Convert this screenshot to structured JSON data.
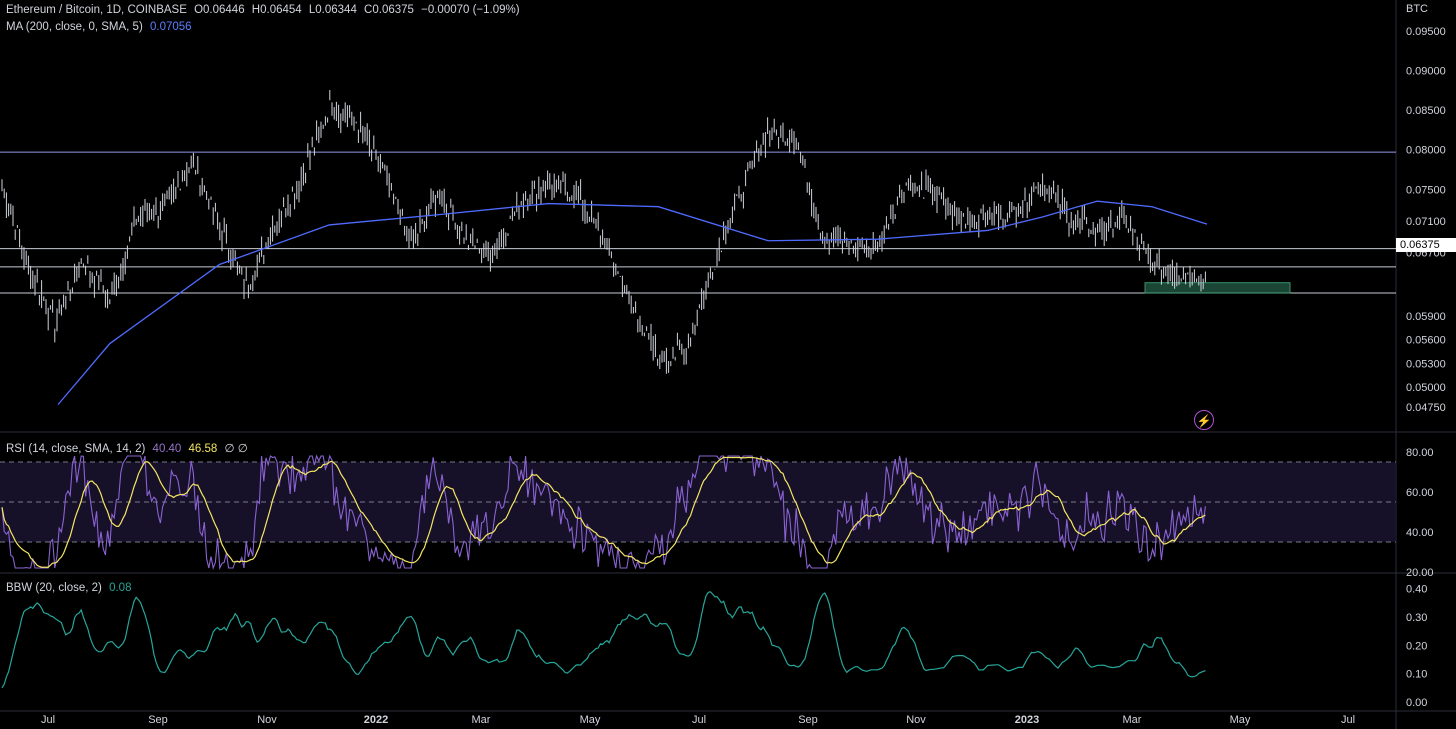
{
  "header": {
    "symbol": "Ethereum / Bitcoin, 1D, COINBASE",
    "open": "O0.06446",
    "high": "H0.06454",
    "low": "L0.06344",
    "close": "C0.06375",
    "change": "−0.00070 (−1.09%)"
  },
  "ma_legend": {
    "label": "MA (200, close, 0, SMA, 5)",
    "value": "0.07056"
  },
  "rsi_legend": {
    "label": "RSI (14, close, SMA, 14, 2)",
    "value": "40.40",
    "sma_value": "46.58",
    "extra": "∅ ∅"
  },
  "bbw_legend": {
    "label": "BBW (20, close, 2)",
    "value": "0.08"
  },
  "price_unit": "BTC",
  "current_price": "0.06375",
  "colors": {
    "ma": "#4f6bff",
    "rsi": "#8a63d2",
    "rsi_sma": "#f5e663",
    "bbw": "#26a69a",
    "candles": "#d1d4dc",
    "zone": "#2e6b4f"
  },
  "chart_data": {
    "type": "line",
    "price_axis": {
      "ticks": [
        "0.09500",
        "0.09000",
        "0.08500",
        "0.08000",
        "0.07500",
        "0.07100",
        "0.06700",
        "0.05900",
        "0.05600",
        "0.05300",
        "0.05000",
        "0.04750"
      ],
      "ylim": [
        0.0475,
        0.0955
      ]
    },
    "x_ticks": [
      "Jul",
      "Sep",
      "Nov",
      "2022",
      "Mar",
      "May",
      "Jul",
      "Sep",
      "Nov",
      "2023",
      "Mar",
      "May",
      "Jul"
    ],
    "horizontal_levels": [
      0.0797,
      0.0675,
      0.0652,
      0.0619
    ],
    "demand_zone": {
      "low": 0.0619,
      "high": 0.0632
    },
    "price_series": {
      "name": "ETH/BTC",
      "x": [
        "2021-06",
        "2021-06",
        "2021-07",
        "2021-07",
        "2021-08",
        "2021-08",
        "2021-09",
        "2021-09",
        "2021-10",
        "2021-10",
        "2021-11",
        "2021-11",
        "2021-12",
        "2021-12",
        "2022-01",
        "2022-01",
        "2022-02",
        "2022-02",
        "2022-03",
        "2022-03",
        "2022-04",
        "2022-04",
        "2022-05",
        "2022-05",
        "2022-06",
        "2022-06",
        "2022-07",
        "2022-07",
        "2022-08",
        "2022-08",
        "2022-09",
        "2022-09",
        "2022-10",
        "2022-10",
        "2022-11",
        "2022-11",
        "2022-12",
        "2022-12",
        "2023-01",
        "2023-01",
        "2023-02",
        "2023-02",
        "2023-03",
        "2023-03",
        "2023-04"
      ],
      "y": [
        0.0765,
        0.0655,
        0.058,
        0.066,
        0.061,
        0.0715,
        0.0725,
        0.0785,
        0.0705,
        0.0625,
        0.0705,
        0.0765,
        0.0855,
        0.0835,
        0.077,
        0.068,
        0.0745,
        0.0685,
        0.0668,
        0.0735,
        0.0755,
        0.0745,
        0.069,
        0.0605,
        0.0535,
        0.0545,
        0.0655,
        0.0745,
        0.0825,
        0.0815,
        0.069,
        0.0678,
        0.0679,
        0.0755,
        0.0745,
        0.0712,
        0.0715,
        0.0722,
        0.0758,
        0.0715,
        0.0698,
        0.0712,
        0.0653,
        0.0645,
        0.0638
      ]
    },
    "ma_series": {
      "x": [
        "2021-06",
        "2021-08",
        "2021-10",
        "2021-12",
        "2022-02",
        "2022-04",
        "2022-06",
        "2022-08",
        "2022-10",
        "2022-12",
        "2023-01",
        "2023-02",
        "2023-03",
        "2023-04"
      ],
      "y": [
        0.0478,
        0.0555,
        0.0655,
        0.0705,
        0.0718,
        0.0732,
        0.0728,
        0.0685,
        0.0687,
        0.0698,
        0.0715,
        0.0735,
        0.0728,
        0.0706
      ]
    },
    "rsi": {
      "ticks": [
        "80.00",
        "60.00",
        "40.00",
        "20.00"
      ],
      "ylim": [
        15,
        85
      ],
      "bands": [
        70,
        50,
        30
      ]
    },
    "bbw": {
      "ticks": [
        "0.40",
        "0.30",
        "0.20",
        "0.10",
        "0.00"
      ],
      "ylim": [
        0,
        0.42
      ]
    }
  }
}
